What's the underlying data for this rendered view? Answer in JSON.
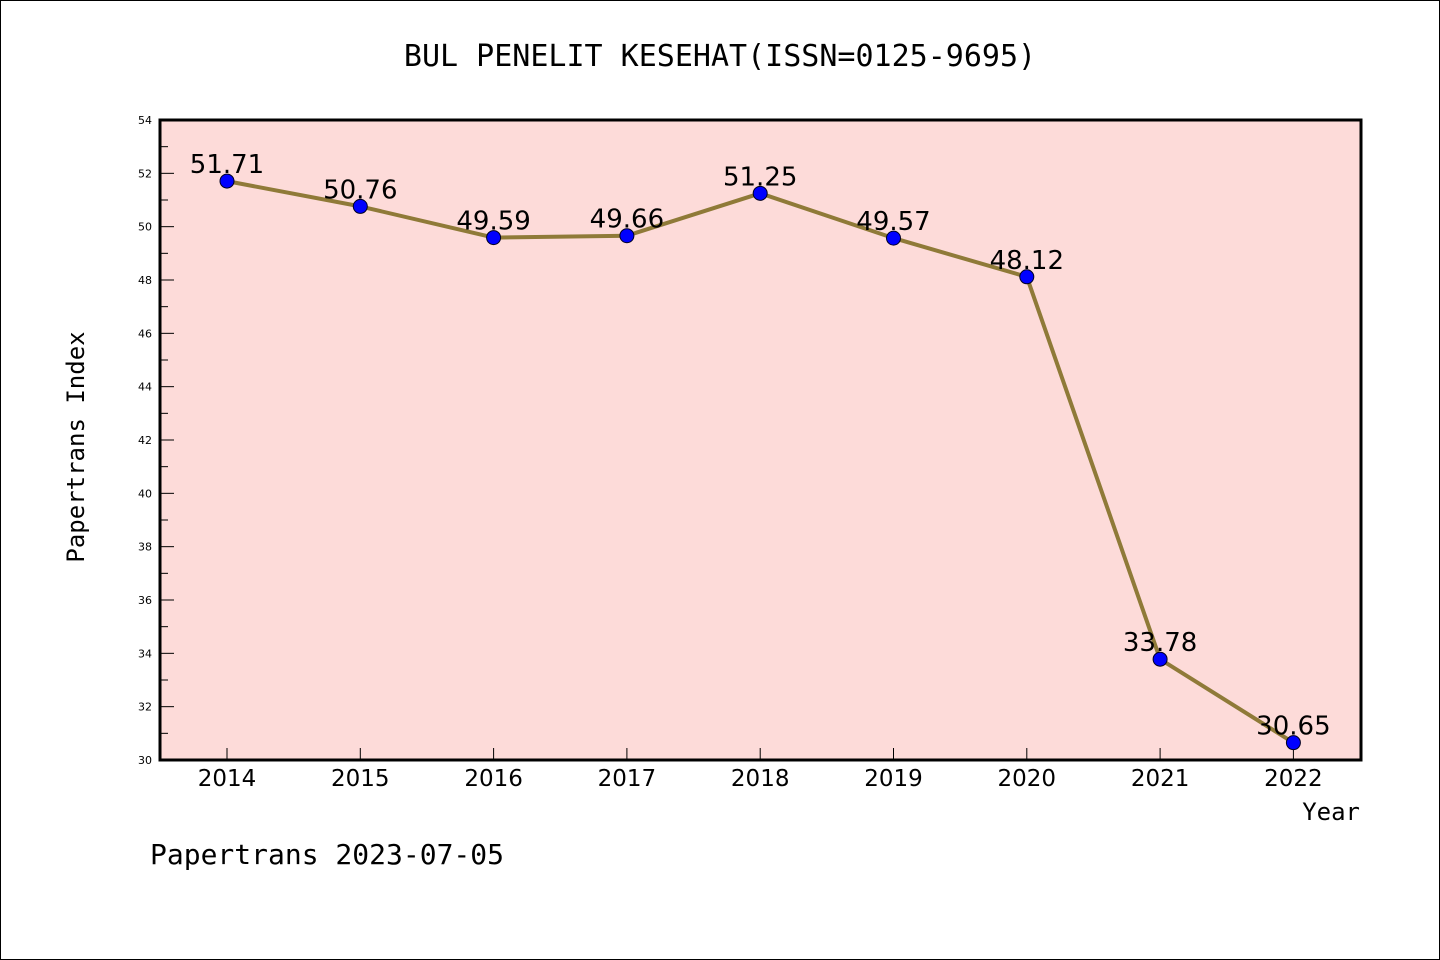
{
  "chart_data": {
    "type": "line",
    "title": "BUL PENELIT KESEHAT(ISSN=0125-9695)",
    "xlabel": "Year",
    "ylabel": "Papertrans Index",
    "categories": [
      "2014",
      "2015",
      "2016",
      "2017",
      "2018",
      "2019",
      "2020",
      "2021",
      "2022"
    ],
    "series": [
      {
        "values": [
          51.71,
          50.76,
          49.59,
          49.66,
          51.25,
          49.57,
          48.12,
          33.78,
          30.65
        ],
        "labels": [
          "51.71",
          "50.76",
          "49.59",
          "49.66",
          "51.25",
          "49.57",
          "48.12",
          "33.78",
          "30.65"
        ]
      }
    ],
    "ylim": [
      30,
      54
    ],
    "yticks": [
      "30",
      "32",
      "34",
      "36",
      "38",
      "40",
      "42",
      "44",
      "46",
      "48",
      "50",
      "52",
      "54"
    ],
    "grid": false,
    "colors": {
      "plot_background": "#fddbd9",
      "line": "#8f7a38",
      "marker": "#0000ff"
    }
  },
  "footer": "Papertrans 2023-07-05"
}
